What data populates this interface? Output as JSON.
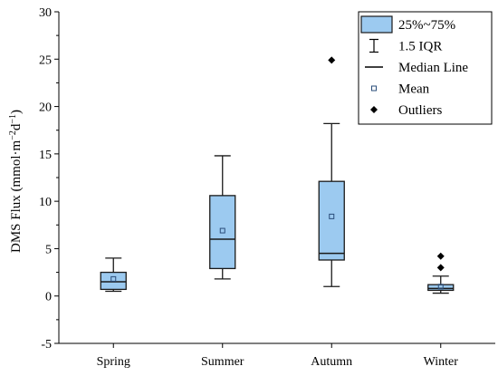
{
  "chart_data": {
    "type": "box",
    "ylabel_text": "DMS Flux (mmol·m",
    "ylabel_sup1": "−2",
    "ylabel_mid": "d",
    "ylabel_sup2": "−1",
    "ylabel_end": ")",
    "ylim": [
      -5,
      30
    ],
    "yticks": [
      -5,
      0,
      5,
      10,
      15,
      20,
      25,
      30
    ],
    "grid": false,
    "legend_position": "top-right",
    "categories": [
      "Spring",
      "Summer",
      "Autumn",
      "Winter"
    ],
    "boxes": [
      {
        "category": "Spring",
        "whisker_low": 0.5,
        "q1": 0.7,
        "median": 1.5,
        "q3": 2.5,
        "whisker_high": 4.0,
        "mean": 1.8,
        "outliers": []
      },
      {
        "category": "Summer",
        "whisker_low": 1.8,
        "q1": 2.9,
        "median": 6.0,
        "q3": 10.6,
        "whisker_high": 14.8,
        "mean": 6.9,
        "outliers": []
      },
      {
        "category": "Autumn",
        "whisker_low": 1.0,
        "q1": 3.8,
        "median": 4.5,
        "q3": 12.1,
        "whisker_high": 18.2,
        "mean": 8.4,
        "outliers": [
          24.9
        ]
      },
      {
        "category": "Winter",
        "whisker_low": 0.3,
        "q1": 0.6,
        "median": 0.8,
        "q3": 1.2,
        "whisker_high": 2.1,
        "mean": 1.0,
        "outliers": [
          3.0,
          4.2
        ]
      }
    ],
    "legend": [
      {
        "key": "box",
        "label": "25%~75%"
      },
      {
        "key": "iqr",
        "label": "1.5 IQR"
      },
      {
        "key": "median",
        "label": "Median Line"
      },
      {
        "key": "mean",
        "label": "Mean"
      },
      {
        "key": "outlier",
        "label": "Outliers"
      }
    ],
    "colors": {
      "box_fill": "#9ccaf0",
      "box_stroke": "#1a1a1a",
      "mean_marker": "#2a4d7a",
      "outlier": "#000000"
    }
  }
}
